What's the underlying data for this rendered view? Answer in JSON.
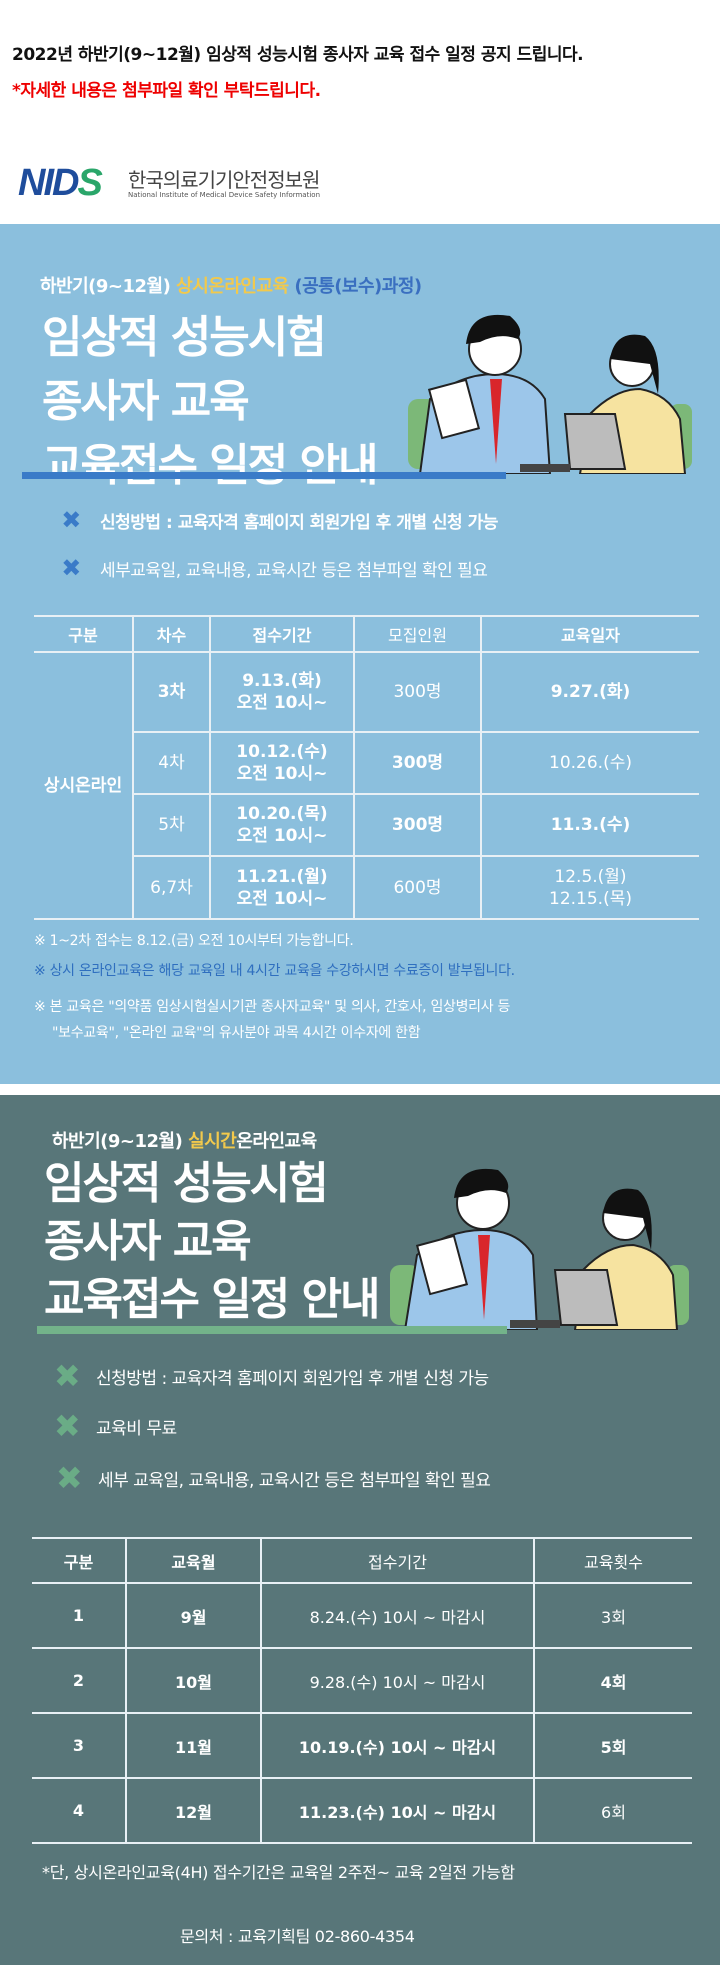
{
  "notice": {
    "headline": "2022년 하반기(9~12월) 임상적 성능시험 종사자 교육 접수 일정 공지 드립니다.",
    "attachment_note": "*자세한 내용은 첨부파일 확인 부탁드립니다."
  },
  "logo": {
    "mark": "NIDS",
    "korean": "한국의료기기안전정보원",
    "english": "National Institute of Medical Device Safety Information"
  },
  "colors": {
    "panel1": "#8bbfdd",
    "panel2": "#587679",
    "accent_yellow": "#f2c94c",
    "accent_blue": "#3a6fc0",
    "accent_green": "#73b38a",
    "alert_red": "#ee0000"
  },
  "section1": {
    "subtitle_prefix": "하반기(9~12월)",
    "subtitle_highlight": "상시온라인교육",
    "subtitle_suffix": "(공통(보수)과정)",
    "title_lines": [
      "임상적 성능시험",
      "종사자 교육",
      "교육접수 일정 안내"
    ],
    "bullet_icon": "x-mark-icon",
    "bullets": [
      "신청방법 : 교육자격 홈페이지 회원가입 후 개별 신청 가능",
      "세부교육일, 교육내용, 교육시간 등은 첨부파일 확인 필요"
    ],
    "table": {
      "headers": [
        "구분",
        "차수",
        "접수기간",
        "모집인원",
        "교육일자"
      ],
      "group": "상시온라인",
      "rows": [
        {
          "round": "3차",
          "period_date": "9.13.(화)",
          "period_time": "오전 10시~",
          "capacity": "300명",
          "edu_date": "9.27.(화)"
        },
        {
          "round": "4차",
          "period_date": "10.12.(수)",
          "period_time": "오전 10시~",
          "capacity": "300명",
          "edu_date": "10.26.(수)"
        },
        {
          "round": "5차",
          "period_date": "10.20.(목)",
          "period_time": "오전 10시~",
          "capacity": "300명",
          "edu_date": "11.3.(수)"
        },
        {
          "round": "6,7차",
          "period_date": "11.21.(월)",
          "period_time": "오전 10시~",
          "capacity": "600명",
          "edu_date": "12.5.(월)",
          "edu_date2": "12.15.(목)"
        }
      ]
    },
    "notes": [
      "※ 1~2차 접수는 8.12.(금) 오전 10시부터 가능합니다.",
      "※ 상시 온라인교육은 해당 교육일 내 4시간 교육을 수강하시면 수료증이 발부됩니다.",
      "※ 본 교육은 \"의약품 임상시험실시기관 종사자교육\" 및 의사, 간호사, 임상병리사 등",
      "\"보수교육\", \"온라인 교육\"의 유사분야 과목 4시간 이수자에 한함"
    ]
  },
  "section2": {
    "subtitle_prefix": "하반기(9~12월)",
    "subtitle_highlight": "실시간",
    "subtitle_suffix": "온라인교육",
    "title_lines": [
      "임상적 성능시험",
      "종사자 교육",
      "교육접수 일정 안내"
    ],
    "bullet_icon": "x-mark-icon",
    "bullets": [
      "신청방법 : 교육자격 홈페이지 회원가입 후 개별 신청 가능",
      "교육비 무료",
      "세부 교육일, 교육내용, 교육시간 등은 첨부파일 확인 필요"
    ],
    "table": {
      "headers": [
        "구분",
        "교육월",
        "접수기간",
        "교육횟수"
      ],
      "rows": [
        {
          "no": "1",
          "month": "9월",
          "period": "8.24.(수) 10시 ~ 마감시",
          "count": "3회"
        },
        {
          "no": "2",
          "month": "10월",
          "period": "9.28.(수) 10시 ~ 마감시",
          "count": "4회"
        },
        {
          "no": "3",
          "month": "11월",
          "period": "10.19.(수) 10시 ~ 마감시",
          "count": "5회"
        },
        {
          "no": "4",
          "month": "12월",
          "period": "11.23.(수) 10시 ~ 마감시",
          "count": "6회"
        }
      ]
    },
    "footnote": "*단, 상시온라인교육(4H) 접수기간은 교육일 2주전~ 교육 2일전 가능함",
    "contact": "문의처 : 교육기획팀 02-860-4354"
  }
}
